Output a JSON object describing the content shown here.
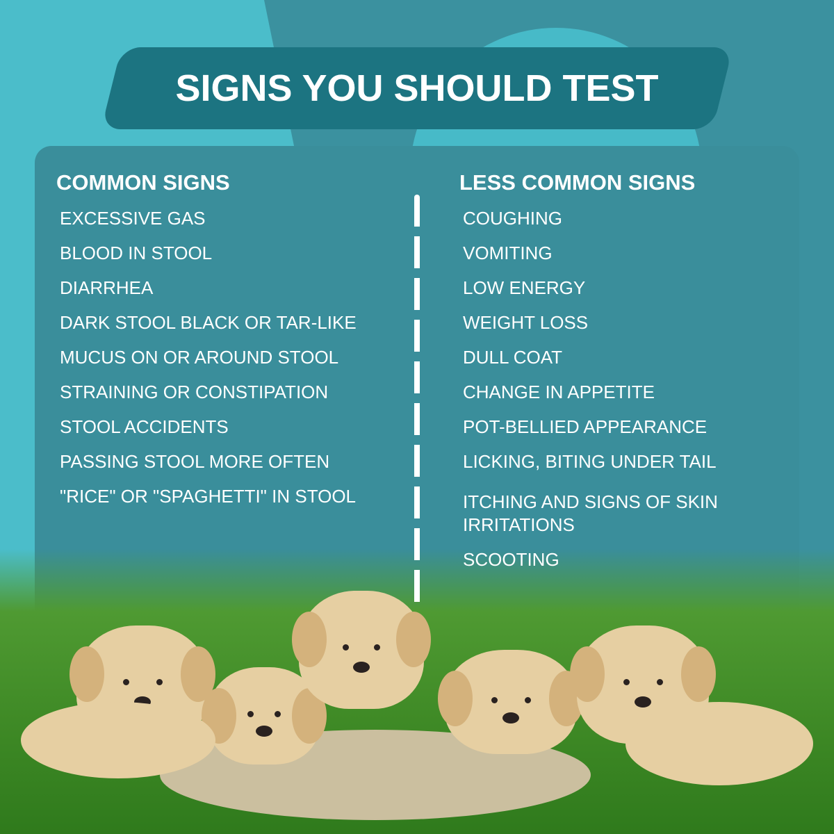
{
  "title": "SIGNS YOU SHOULD TEST",
  "common": {
    "heading": "COMMON SIGNS",
    "items": [
      "EXCESSIVE GAS",
      "BLOOD IN STOOL",
      "DIARRHEA",
      "DARK STOOL BLACK OR TAR-LIKE",
      "MUCUS ON OR AROUND STOOL",
      "STRAINING OR CONSTIPATION",
      "STOOL ACCIDENTS",
      "PASSING STOOL MORE OFTEN",
      "\"RICE\" OR \"SPAGHETTI\" IN STOOL"
    ]
  },
  "less_common": {
    "heading": "LESS COMMON SIGNS",
    "items": [
      "COUGHING",
      "VOMITING",
      "LOW ENERGY",
      "WEIGHT LOSS",
      "DULL COAT",
      "CHANGE IN APPETITE",
      "POT-BELLIED APPEARANCE",
      "LICKING, BITING UNDER TAIL",
      "ITCHING AND SIGNS OF SKIN IRRITATIONS",
      "SCOOTING"
    ]
  },
  "colors": {
    "background": "#4bbdca",
    "banner": "#1c7481",
    "panel": "#3a8e9b",
    "grass": "#3f8a26"
  },
  "image": "five-labrador-puppies-on-grass"
}
